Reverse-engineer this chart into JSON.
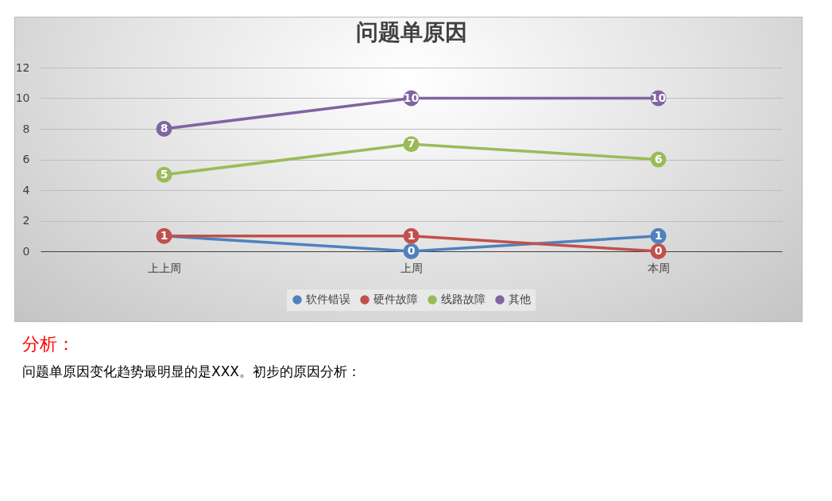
{
  "chart_data": {
    "type": "line",
    "title": "问题单原因",
    "categories": [
      "上上周",
      "上周",
      "本周"
    ],
    "series": [
      {
        "name": "软件错误",
        "color": "#4f81bd",
        "values": [
          1,
          0,
          1
        ],
        "value_labels": [
          null,
          "0",
          "1"
        ]
      },
      {
        "name": "硬件故障",
        "color": "#c0504d",
        "values": [
          1,
          1,
          0
        ],
        "value_labels": [
          "1",
          "1",
          "0"
        ]
      },
      {
        "name": "线路故障",
        "color": "#9bbb59",
        "values": [
          5,
          7,
          6
        ],
        "value_labels": [
          "5",
          "7",
          "6"
        ]
      },
      {
        "name": "其他",
        "color": "#8064a2",
        "values": [
          8,
          10,
          10
        ],
        "value_labels": [
          "8",
          "10",
          "10"
        ]
      }
    ],
    "ylim": [
      0,
      12
    ],
    "yticks": [
      0,
      2,
      4,
      6,
      8,
      10,
      12
    ],
    "grid": "y",
    "legend": "bottom",
    "marker": "circle",
    "annotations": [
      "分析：",
      "问题单原因变化趋势最明显的是XXX。初步的原因分析："
    ]
  }
}
